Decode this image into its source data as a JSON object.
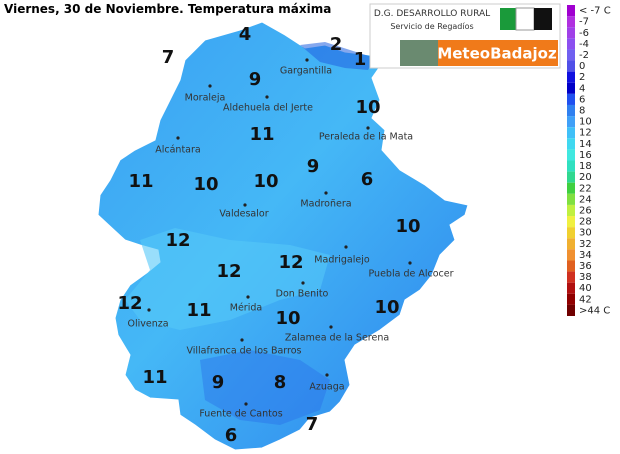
{
  "header": {
    "title": "Viernes, 30 de Noviembre.  Temperatura máxima"
  },
  "logo": {
    "org": "D.G. DESARROLLO RURAL",
    "service": "Servicio de Regadíos",
    "brand": "MeteoBadajoz"
  },
  "legend": [
    {
      "label": "< -7 C",
      "color": "#a000d0"
    },
    {
      "label": "-7",
      "color": "#b030e0"
    },
    {
      "label": "-6",
      "color": "#a040e8"
    },
    {
      "label": "-4",
      "color": "#8c50f0"
    },
    {
      "label": "-2",
      "color": "#7060f0"
    },
    {
      "label": "0",
      "color": "#5050e8"
    },
    {
      "label": "2",
      "color": "#1010e0"
    },
    {
      "label": "4",
      "color": "#0000c8"
    },
    {
      "label": "6",
      "color": "#2050f0"
    },
    {
      "label": "8",
      "color": "#3080f0"
    },
    {
      "label": "10",
      "color": "#40a0f8"
    },
    {
      "label": "12",
      "color": "#40c0f8"
    },
    {
      "label": "14",
      "color": "#40d8f0"
    },
    {
      "label": "16",
      "color": "#40e8e0"
    },
    {
      "label": "18",
      "color": "#30e0c0"
    },
    {
      "label": "20",
      "color": "#30d890"
    },
    {
      "label": "22",
      "color": "#40d040"
    },
    {
      "label": "24",
      "color": "#80e040"
    },
    {
      "label": "26",
      "color": "#c0f040"
    },
    {
      "label": "28",
      "color": "#f0f040"
    },
    {
      "label": "30",
      "color": "#f0d030"
    },
    {
      "label": "32",
      "color": "#f0b030"
    },
    {
      "label": "34",
      "color": "#f09030"
    },
    {
      "label": "36",
      "color": "#e06020"
    },
    {
      "label": "38",
      "color": "#d03020"
    },
    {
      "label": "40",
      "color": "#b01010"
    },
    {
      "label": "42",
      "color": "#900000"
    },
    {
      "label": ">44 C",
      "color": "#700000"
    }
  ],
  "towns": [
    "Gargantilla",
    "Moraleja",
    "Aldehuela del Jerte",
    "Peraleda de la Mata",
    "Alcántara",
    "Madroñera",
    "Valdesalor",
    "Madrigalejo",
    "Puebla de Alcocer",
    "Don Benito",
    "Mérida",
    "Olivenza",
    "Zalamea de la Serena",
    "Villafranca de los Barros",
    "Azuaga",
    "Fuente de Cantos"
  ],
  "temperatures": [
    "4",
    "2",
    "1",
    "7",
    "9",
    "10",
    "11",
    "9",
    "6",
    "11",
    "10",
    "10",
    "10",
    "12",
    "12",
    "12",
    "12",
    "11",
    "10",
    "10",
    "11",
    "9",
    "8",
    "6",
    "7"
  ]
}
